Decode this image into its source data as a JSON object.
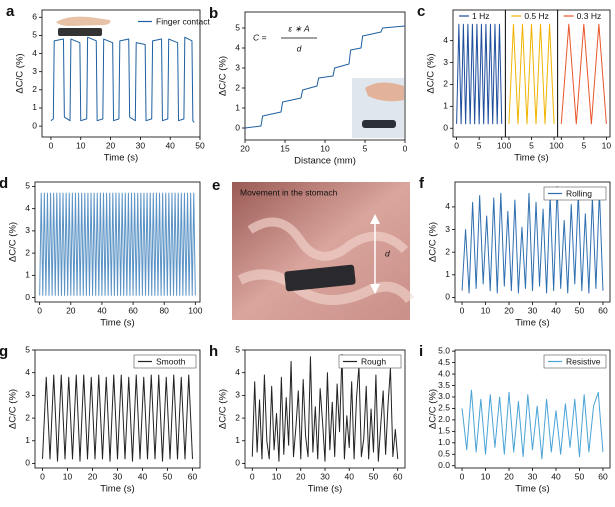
{
  "chart_data": [
    {
      "type": "line",
      "panel_label": "a",
      "xlabel": "Time (s)",
      "ylabel": "ΔC/C (%)",
      "xlim": [
        -3,
        50
      ],
      "ylim": [
        -0.6,
        6.4
      ],
      "xticks": [
        0,
        10,
        20,
        30,
        40,
        50
      ],
      "yticks": [
        0,
        1,
        2,
        3,
        4,
        5,
        6
      ],
      "legend": "upper right",
      "legend_frame": false,
      "x": [
        0,
        0.8,
        1.1,
        4.2,
        4.5,
        6.4,
        6.7,
        9.7,
        10,
        12,
        12.3,
        15.2,
        15.5,
        17.4,
        17.7,
        20.7,
        21,
        22.8,
        23.1,
        26.1,
        26.4,
        28.3,
        28.6,
        31.6,
        31.9,
        33.8,
        34.1,
        37.1,
        37.4,
        39.2,
        39.5,
        42.5,
        42.8,
        44.6,
        44.9,
        47.3,
        47.6,
        48
      ],
      "series": [
        {
          "name": "Finger contact",
          "color": "#1f5fa0",
          "values": [
            0.3,
            0.4,
            4.7,
            4.8,
            0.5,
            0.3,
            4.8,
            4.6,
            0.3,
            0.4,
            4.9,
            4.7,
            0.3,
            0.4,
            4.8,
            4.6,
            0.3,
            0.4,
            4.7,
            4.8,
            0.5,
            0.3,
            4.6,
            4.5,
            0.3,
            0.4,
            4.7,
            4.8,
            0.3,
            0.4,
            4.8,
            4.6,
            0.3,
            0.4,
            4.9,
            4.7,
            0.3,
            0.2
          ]
        }
      ]
    },
    {
      "type": "line",
      "panel_label": "b",
      "xlabel": "Distance (mm)",
      "ylabel": "ΔC/C (%)",
      "xlim": [
        20,
        0
      ],
      "ylim": [
        -0.6,
        5.8
      ],
      "xticks": [
        20,
        15,
        10,
        5,
        0
      ],
      "yticks": [
        0,
        1,
        2,
        3,
        4,
        5
      ],
      "formula": {
        "lhs": "C =",
        "numerator": "ε ∗ A",
        "denominator": "d"
      },
      "x": [
        20,
        18,
        17.8,
        15.5,
        15.3,
        13,
        12.8,
        11,
        10.8,
        9,
        8.8,
        7,
        6.8,
        5.5,
        5.3,
        3,
        2.8,
        0
      ],
      "color": "#1f5fa0",
      "values": [
        0,
        0.1,
        0.6,
        0.8,
        1.3,
        1.5,
        1.9,
        2.1,
        2.5,
        2.6,
        3.0,
        3.2,
        3.9,
        4.0,
        4.6,
        4.8,
        5.0,
        5.1
      ]
    },
    {
      "type": "multi-panel-line",
      "panel_label": "c",
      "xlabel": "Time (s)",
      "ylabel": "ΔC/C (%)",
      "xlim": [
        -0.8,
        10.8
      ],
      "ylim": [
        -0.4,
        5.4
      ],
      "xticks": [
        0,
        5,
        10
      ],
      "yticks": [
        0,
        1,
        2,
        3,
        4
      ],
      "series": [
        {
          "name": "1 Hz",
          "color": "#1f4e9c",
          "x": [
            0,
            0.5,
            1,
            1.5,
            2,
            2.5,
            3,
            3.5,
            4,
            4.5,
            5,
            5.5,
            6,
            6.5,
            7,
            7.5,
            8,
            8.5,
            9,
            9.5,
            10
          ],
          "values": [
            0.2,
            4.75,
            0.2,
            4.75,
            0.2,
            4.75,
            0.2,
            4.75,
            0.2,
            4.75,
            0.2,
            4.75,
            0.2,
            4.75,
            0.2,
            4.75,
            0.2,
            4.75,
            0.2,
            4.75,
            0.2
          ]
        },
        {
          "name": "0.5 Hz",
          "color": "#f0b400",
          "x": [
            0,
            1,
            2,
            3,
            4,
            5,
            6,
            7,
            8,
            9,
            10
          ],
          "values": [
            0.2,
            4.75,
            0.2,
            4.75,
            0.2,
            4.75,
            0.2,
            4.75,
            0.2,
            4.75,
            0.2
          ]
        },
        {
          "name": "0.3 Hz",
          "color": "#e8562a",
          "x": [
            0,
            1.67,
            3.33,
            5,
            6.67,
            8.33,
            10
          ],
          "values": [
            0.2,
            4.75,
            0.2,
            4.75,
            0.2,
            4.75,
            0.2
          ]
        }
      ]
    },
    {
      "type": "line",
      "panel_label": "d",
      "xlabel": "Time (s)",
      "ylabel": "ΔC/C (%)",
      "xlim": [
        -3,
        103
      ],
      "ylim": [
        -0.2,
        5.2
      ],
      "xticks": [
        0,
        20,
        40,
        60,
        80,
        100
      ],
      "yticks": [
        0,
        1,
        2,
        3,
        4,
        5
      ],
      "x": [
        0,
        1,
        2,
        3,
        4,
        5,
        6,
        7,
        8,
        9,
        10,
        11,
        12,
        13,
        14,
        15,
        16,
        17,
        18,
        19,
        20,
        21,
        22,
        23,
        24,
        25,
        26,
        27,
        28,
        29,
        30,
        31,
        32,
        33,
        34,
        35,
        36,
        37,
        38,
        39,
        40,
        41,
        42,
        43,
        44,
        45,
        46,
        47,
        48,
        49,
        50,
        51,
        52,
        53,
        54,
        55,
        56,
        57,
        58,
        59,
        60,
        61,
        62,
        63,
        64,
        65,
        66,
        67,
        68,
        69,
        70,
        71,
        72,
        73,
        74,
        75,
        76,
        77,
        78,
        79,
        80,
        81,
        82,
        83,
        84,
        85,
        86,
        87,
        88,
        89,
        90,
        91,
        92,
        93,
        94,
        95,
        96,
        97,
        98,
        99,
        100
      ],
      "color": "#5b93c6",
      "values": [
        0.1,
        4.7,
        0.1,
        4.7,
        0.1,
        4.7,
        0.1,
        4.7,
        0.1,
        4.7,
        0.1,
        4.7,
        0.1,
        4.7,
        0.1,
        4.7,
        0.1,
        4.7,
        0.1,
        4.7,
        0.1,
        4.7,
        0.1,
        4.7,
        0.1,
        4.7,
        0.1,
        4.7,
        0.1,
        4.7,
        0.1,
        4.7,
        0.1,
        4.7,
        0.1,
        4.7,
        0.1,
        4.7,
        0.1,
        4.7,
        0.1,
        4.7,
        0.1,
        4.7,
        0.1,
        4.7,
        0.1,
        4.7,
        0.1,
        4.7,
        0.1,
        4.7,
        0.1,
        4.7,
        0.1,
        4.7,
        0.1,
        4.7,
        0.1,
        4.7,
        0.1,
        4.7,
        0.1,
        4.7,
        0.1,
        4.7,
        0.1,
        4.7,
        0.1,
        4.7,
        0.1,
        4.7,
        0.1,
        4.7,
        0.1,
        4.7,
        0.1,
        4.7,
        0.1,
        4.7,
        0.1,
        4.7,
        0.1,
        4.7,
        0.1,
        4.7,
        0.1,
        4.7,
        0.1,
        4.7,
        0.1,
        4.7,
        0.1,
        4.7,
        0.1,
        4.7,
        0.1,
        4.7,
        0.1,
        4.7,
        0.1
      ]
    },
    {
      "type": "line",
      "panel_label": "f",
      "xlabel": "Time (s)",
      "ylabel": "ΔC/C (%)",
      "xlim": [
        -3,
        63
      ],
      "ylim": [
        -0.2,
        5.1
      ],
      "xticks": [
        0,
        10,
        20,
        30,
        40,
        50,
        60
      ],
      "yticks": [
        0,
        1,
        2,
        3,
        4
      ],
      "legend": "upper right",
      "legend_frame": true,
      "x": [
        0,
        1.5,
        3,
        4.5,
        6,
        7.5,
        9,
        10.5,
        12,
        13.5,
        15,
        16.5,
        18,
        19.5,
        21,
        22.5,
        24,
        25.5,
        27,
        28.5,
        30,
        31.5,
        33,
        34.5,
        36,
        37.5,
        39,
        40.5,
        42,
        43.5,
        45,
        46.5,
        48,
        49.5,
        51,
        52.5,
        54,
        55.5,
        57,
        58.5,
        60
      ],
      "series": [
        {
          "name": "Rolling",
          "color": "#2e6fb0",
          "values": [
            0.3,
            3.0,
            0.2,
            4.2,
            0.4,
            4.5,
            0.6,
            3.6,
            0.3,
            4.4,
            0.2,
            4.6,
            0.5,
            3.8,
            0.3,
            4.3,
            0.2,
            3.1,
            0.4,
            4.6,
            0.3,
            4.2,
            0.5,
            3.9,
            0.2,
            4.5,
            0.3,
            4.9,
            0.4,
            3.4,
            0.2,
            4.1,
            0.6,
            4.6,
            0.3,
            3.7,
            0.2,
            4.4,
            0.4,
            4.7,
            0.3
          ]
        }
      ]
    },
    {
      "type": "line",
      "panel_label": "g",
      "xlabel": "Time (s)",
      "ylabel": "ΔC/C (%)",
      "xlim": [
        -3,
        63
      ],
      "ylim": [
        -0.2,
        5
      ],
      "xticks": [
        0,
        10,
        20,
        30,
        40,
        50,
        60
      ],
      "yticks": [
        0,
        1,
        2,
        3,
        4,
        5
      ],
      "legend": "upper right",
      "legend_frame": true,
      "x": [
        0,
        1.5,
        3,
        4.5,
        6,
        7.5,
        9,
        10.5,
        12,
        13.5,
        15,
        16.5,
        18,
        19.5,
        21,
        22.5,
        24,
        25.5,
        27,
        28.5,
        30,
        31.5,
        33,
        34.5,
        36,
        37.5,
        39,
        40.5,
        42,
        43.5,
        45,
        46.5,
        48,
        49.5,
        51,
        52.5,
        54,
        55.5,
        57,
        58.5,
        60
      ],
      "series": [
        {
          "name": "Smooth",
          "color": "#222222",
          "values": [
            0.2,
            3.8,
            0.2,
            3.9,
            0.1,
            3.9,
            0.2,
            3.8,
            0.2,
            3.9,
            0.1,
            3.9,
            0.2,
            3.8,
            0.2,
            3.9,
            0.2,
            3.8,
            0.1,
            3.9,
            0.2,
            3.9,
            0.2,
            3.8,
            0.1,
            3.9,
            0.2,
            3.8,
            0.2,
            3.9,
            0.2,
            3.9,
            0.1,
            3.8,
            0.2,
            3.9,
            0.2,
            3.8,
            0.2,
            3.9,
            0.2
          ]
        }
      ]
    },
    {
      "type": "line",
      "panel_label": "h",
      "xlabel": "Time (s)",
      "ylabel": "ΔC/C (%)",
      "xlim": [
        -3,
        63
      ],
      "ylim": [
        -0.2,
        5
      ],
      "xticks": [
        0,
        10,
        20,
        30,
        40,
        50,
        60
      ],
      "yticks": [
        0,
        1,
        2,
        3,
        4,
        5
      ],
      "legend": "upper right",
      "legend_frame": true,
      "x": [
        0,
        1,
        2,
        3,
        4,
        5,
        6,
        7,
        8,
        9,
        10,
        11,
        12,
        13,
        14,
        15,
        16,
        17,
        18,
        19,
        20,
        21,
        22,
        23,
        24,
        25,
        26,
        27,
        28,
        29,
        30,
        31,
        32,
        33,
        34,
        35,
        36,
        37,
        38,
        39,
        40,
        41,
        42,
        43,
        44,
        45,
        46,
        47,
        48,
        49,
        50,
        51,
        52,
        53,
        54,
        55,
        56,
        57,
        58,
        59,
        60
      ],
      "series": [
        {
          "name": "Rough",
          "color": "#222222",
          "values": [
            0.3,
            3.6,
            0.5,
            2.8,
            0.2,
            3.9,
            1.0,
            0.2,
            3.4,
            0.6,
            2.2,
            0.1,
            3.8,
            0.4,
            2.9,
            0.8,
            4.5,
            0.3,
            1.6,
            3.2,
            0.2,
            3.7,
            1.2,
            0.3,
            4.7,
            0.5,
            2.5,
            0.2,
            3.3,
            1.8,
            0.1,
            4.0,
            0.6,
            2.7,
            0.3,
            3.5,
            1.4,
            4.8,
            0.2,
            2.1,
            0.7,
            3.6,
            0.2,
            2.9,
            4.3,
            0.3,
            1.1,
            3.4,
            0.2,
            2.4,
            0.5,
            3.9,
            0.1,
            1.7,
            3.2,
            0.4,
            2.6,
            4.2,
            0.3,
            1.5,
            0.2
          ]
        }
      ]
    },
    {
      "type": "line",
      "panel_label": "i",
      "xlabel": "Time (s)",
      "ylabel": "ΔC/C (%)",
      "xlim": [
        -3,
        63
      ],
      "ylim": [
        -0.1,
        5.05
      ],
      "xticks": [
        0,
        10,
        20,
        30,
        40,
        50,
        60
      ],
      "yticks": [
        {
          "value": 0,
          "label": "0.0"
        },
        0.5,
        {
          "value": 1,
          "label": "1.0"
        },
        1.5,
        {
          "value": 2,
          "label": "2.0"
        },
        2.5,
        {
          "value": 3,
          "label": "3.0"
        },
        3.5,
        {
          "value": 4,
          "label": "4.0"
        },
        4.5,
        {
          "value": 5,
          "label": "5.0"
        }
      ],
      "legend": "upper right",
      "legend_frame": true,
      "x": [
        0,
        2,
        4,
        6,
        8,
        10,
        12,
        14,
        16,
        18,
        20,
        22,
        24,
        26,
        28,
        30,
        32,
        34,
        36,
        38,
        40,
        42,
        44,
        46,
        48,
        50,
        52,
        54,
        56,
        58,
        60
      ],
      "series": [
        {
          "name": "Resistive",
          "color": "#4aa3d6",
          "values": [
            2.5,
            0.7,
            3.3,
            0.6,
            2.9,
            0.5,
            3.1,
            0.8,
            3.0,
            0.5,
            3.2,
            0.6,
            2.8,
            0.4,
            3.1,
            0.7,
            2.6,
            0.3,
            2.9,
            0.6,
            2.4,
            0.5,
            2.7,
            0.8,
            2.9,
            0.4,
            3.1,
            0.6,
            2.6,
            3.2,
            0.6
          ]
        }
      ]
    }
  ],
  "photo": {
    "panel_label": "e",
    "caption": "Movement in the stomach",
    "marker": "d"
  }
}
